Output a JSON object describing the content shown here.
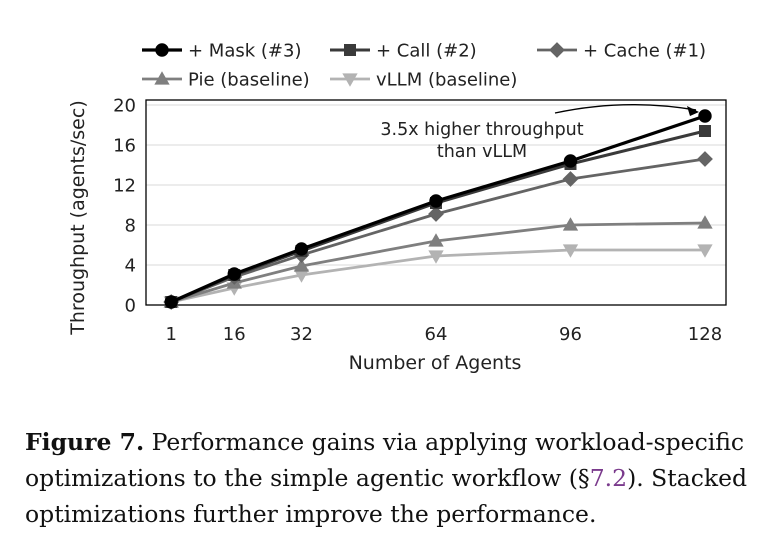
{
  "chart_data": {
    "type": "line",
    "xlabel": "Number of Agents",
    "ylabel": "Throughput (agents/sec)",
    "x": [
      1,
      16,
      32,
      64,
      96,
      128
    ],
    "x_ticks": [
      1,
      16,
      32,
      64,
      96,
      128
    ],
    "y_ticks": [
      0,
      4,
      8,
      12,
      16,
      20
    ],
    "xlim": [
      -5,
      133
    ],
    "ylim": [
      0,
      20.5
    ],
    "grid": "horizontal",
    "legend_position": "top",
    "series": [
      {
        "name": "+ Mask (#3)",
        "values": [
          0.3,
          3.1,
          5.6,
          10.4,
          14.4,
          18.9
        ],
        "color": "#000000",
        "marker": "circle"
      },
      {
        "name": "+ Call (#2)",
        "values": [
          0.3,
          3.0,
          5.4,
          10.2,
          14.1,
          17.4
        ],
        "color": "#3a3a3a",
        "marker": "square"
      },
      {
        "name": "+ Cache (#1)",
        "values": [
          0.3,
          2.8,
          5.0,
          9.1,
          12.6,
          14.6
        ],
        "color": "#646464",
        "marker": "diamond"
      },
      {
        "name": "Pie (baseline)",
        "values": [
          0.3,
          2.2,
          3.9,
          6.4,
          8.0,
          8.2
        ],
        "color": "#7f7f7f",
        "marker": "triangle-up"
      },
      {
        "name": "vLLM (baseline)",
        "values": [
          0.3,
          1.7,
          3.0,
          4.9,
          5.5,
          5.5
        ],
        "color": "#b3b3b3",
        "marker": "triangle-down"
      }
    ],
    "annotation": {
      "lines": [
        "3.5x higher throughput",
        "than vLLM"
      ],
      "points_to": {
        "x": 128,
        "y": 18.9
      }
    }
  },
  "caption": {
    "figure_label": "Figure 7.",
    "text_before_ref": " Performance gains via applying workload-specific optimizations to the simple agentic workflow (§",
    "ref": "7.2",
    "text_after_ref": "). Stacked optimizations further improve the performance."
  }
}
